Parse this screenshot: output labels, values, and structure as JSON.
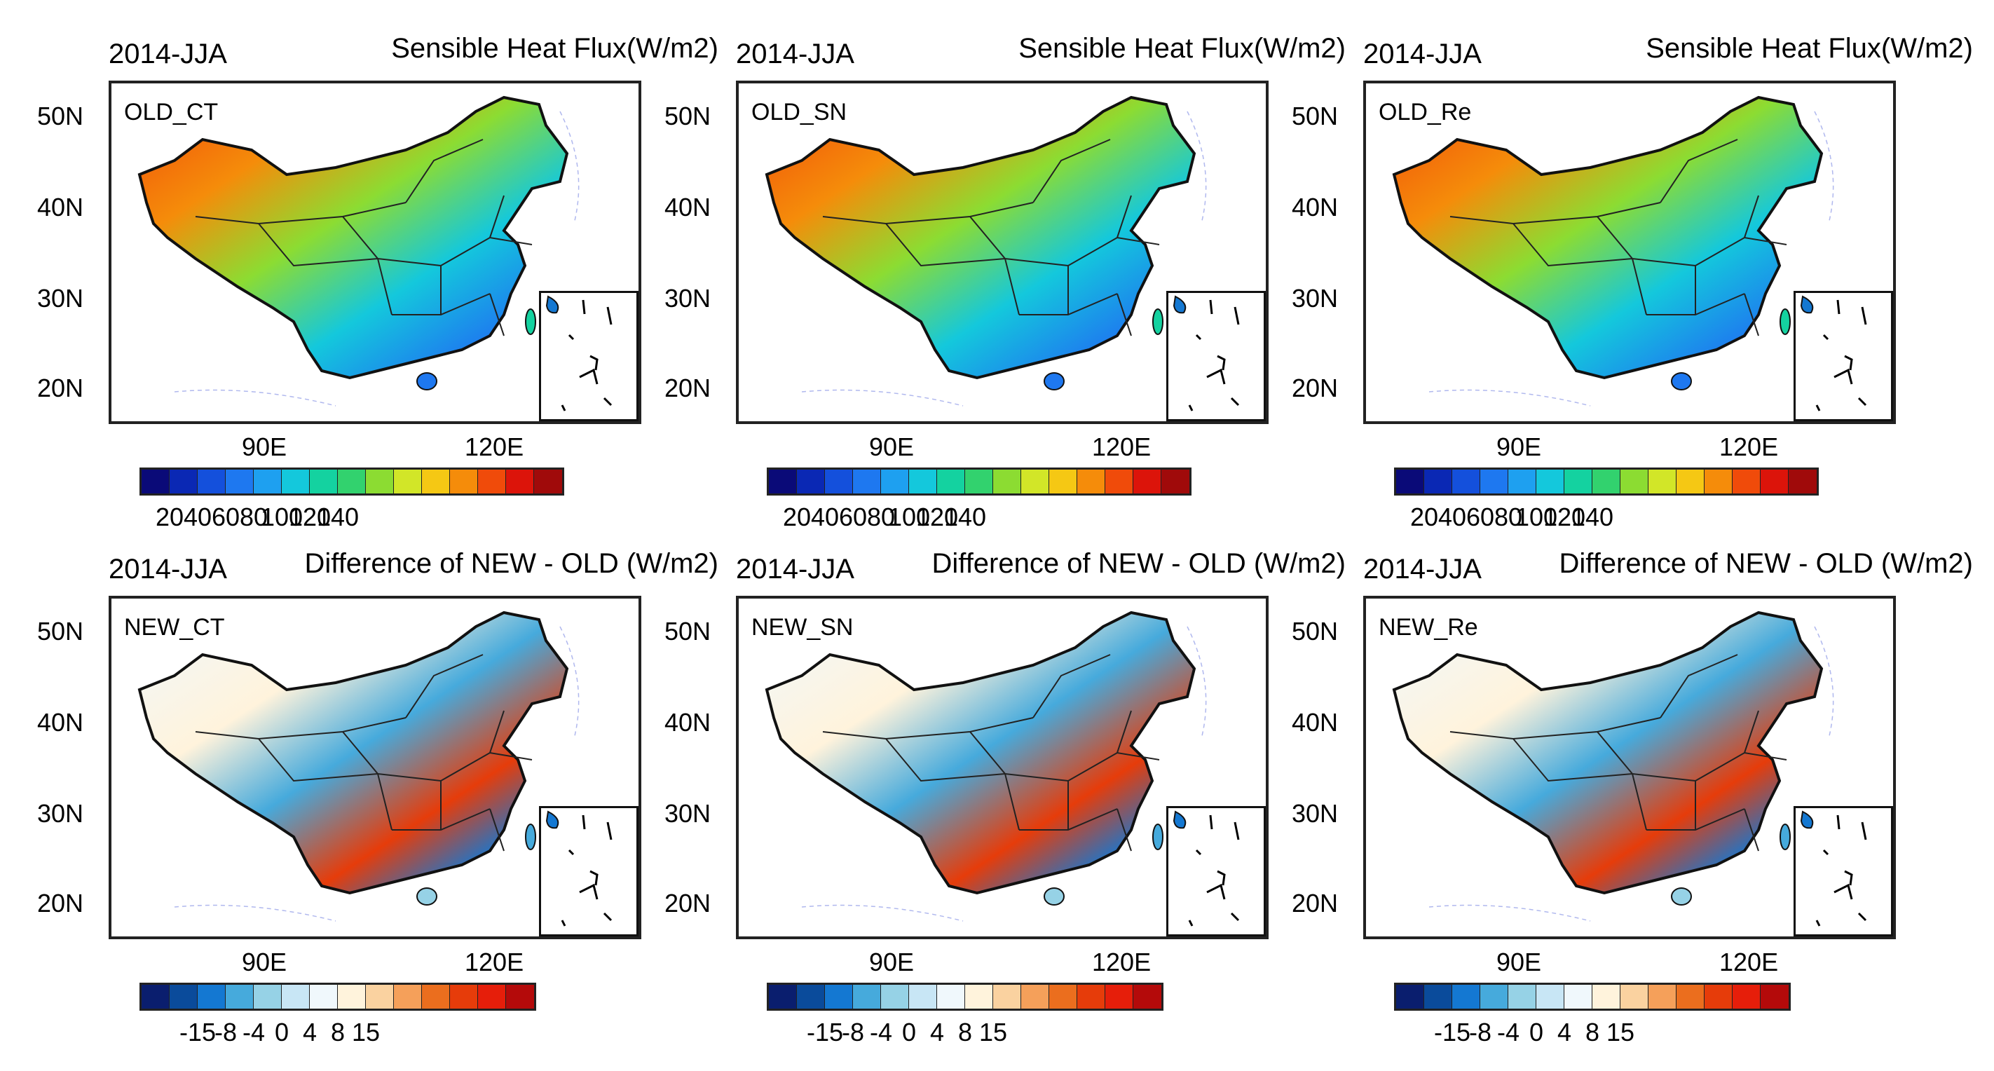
{
  "colors": {
    "abs": [
      "#0a0a78",
      "#0a28b4",
      "#1450dc",
      "#1e78f0",
      "#1ea0f0",
      "#14c8dc",
      "#14d2a0",
      "#32d26e",
      "#8cdc32",
      "#d2e628",
      "#f5c814",
      "#f58c0a",
      "#f04b0a",
      "#dc140a",
      "#a00a0a"
    ],
    "diff": [
      "#0a1e6e",
      "#0a4b9b",
      "#1478d2",
      "#46aadc",
      "#96d2e6",
      "#c8e6f5",
      "#f0f8fc",
      "#fff3dc",
      "#fad2a0",
      "#f5a05a",
      "#eb6e1e",
      "#e63c0a",
      "#e61e0a",
      "#b40a0a"
    ]
  },
  "panels": [
    {
      "season": "2014-JJA",
      "title": "Sensible Heat Flux(W/m2)",
      "tag": "OLD_CT",
      "kind": "abs"
    },
    {
      "season": "2014-JJA",
      "title": "Sensible Heat Flux(W/m2)",
      "tag": "OLD_SN",
      "kind": "abs"
    },
    {
      "season": "2014-JJA",
      "title": "Sensible Heat Flux(W/m2)",
      "tag": "OLD_Re",
      "kind": "abs"
    },
    {
      "season": "2014-JJA",
      "title": "Difference of NEW - OLD (W/m2)",
      "tag": "NEW_CT",
      "kind": "diff"
    },
    {
      "season": "2014-JJA",
      "title": "Difference of NEW - OLD (W/m2)",
      "tag": "NEW_SN",
      "kind": "diff"
    },
    {
      "season": "2014-JJA",
      "title": "Difference of NEW - OLD (W/m2)",
      "tag": "NEW_Re",
      "kind": "diff"
    }
  ],
  "lat_labels": [
    "50N",
    "40N",
    "30N",
    "20N"
  ],
  "lon_labels": [
    "90E",
    "120E"
  ],
  "abs_colorbar_labels": [
    "20",
    "40",
    "60",
    "80",
    "100",
    "120",
    "140"
  ],
  "diff_colorbar_labels": [
    "-15",
    "-8",
    "-4",
    "0",
    "4",
    "8",
    "15"
  ]
}
